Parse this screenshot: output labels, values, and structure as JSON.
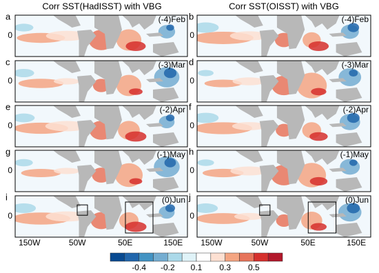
{
  "column_titles": [
    "Corr SST(HadISST) with VBG",
    "Corr SST(OISST) with VBG"
  ],
  "panels": [
    {
      "letter": "a",
      "label": "(-4)Feb"
    },
    {
      "letter": "b",
      "label": "(-4)Feb"
    },
    {
      "letter": "c",
      "label": "(-3)Mar"
    },
    {
      "letter": "d",
      "label": "(-3)Mar"
    },
    {
      "letter": "e",
      "label": "(-2)Apr"
    },
    {
      "letter": "f",
      "label": "(-2)Apr"
    },
    {
      "letter": "g",
      "label": "(-1)May"
    },
    {
      "letter": "h",
      "label": "(-1)May"
    },
    {
      "letter": "i",
      "label": "(0)Jun"
    },
    {
      "letter": "j",
      "label": "(0)Jun"
    }
  ],
  "y_tick": "0",
  "x_ticks": [
    "150W",
    "50W",
    "50E",
    "150E"
  ],
  "colorbar": {
    "colors": [
      "#084a91",
      "#2166ac",
      "#4393c3",
      "#74add1",
      "#abd9e9",
      "#e0f3f8",
      "#ffffff",
      "#fde0d2",
      "#f4a582",
      "#e7745b",
      "#d6302d",
      "#b2182b"
    ],
    "ticks": [
      -0.4,
      -0.2,
      0.1,
      0.3,
      0.5
    ]
  }
}
